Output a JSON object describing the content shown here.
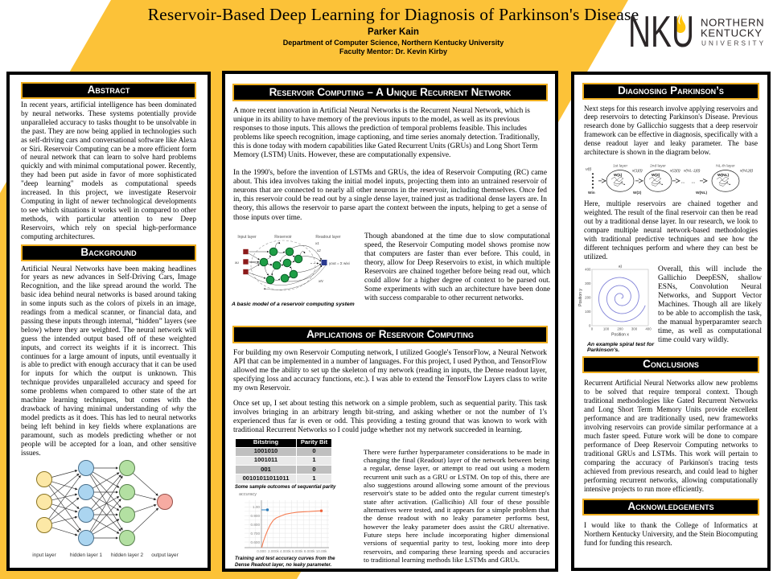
{
  "banner": {
    "title": "Reservoir-Based Deep Learning for Diagnosis of Parkinson's Disease",
    "author": "Parker Kain",
    "department": "Department of Computer Science, Northern Kentucky University",
    "mentor": "Faculty Mentor: Dr. Kevin Kirby"
  },
  "logo": {
    "acronym": "NKU",
    "line1": "NORTHERN",
    "line2": "KENTUCKY",
    "line3": "UNIVERSITY"
  },
  "colors": {
    "gold": "#FCC238",
    "black": "#000000",
    "header_border": "#EFAE1E",
    "nn_input": "#FCE8A6",
    "nn_hidden1": "#ABD5F0",
    "nn_hidden2": "#B3E0A2",
    "nn_output": "#F6ABA2",
    "reservoir_node": "#1e9e46",
    "input_square": "#8c1a1a",
    "readout_square": "#2b3a8f",
    "accuracy_orange": "#f57c52",
    "accuracy_blue": "#3b8ccc",
    "spiral_line": "#8183d8"
  },
  "sections": {
    "abstract": {
      "title": "Abstract",
      "body": "In recent years, artificial intelligence has been dominated by neural networks. These systems potentially provide unparalleled accuracy to tasks thought to be unsolvable in the past. They are now being applied in technologies such as self-driving cars and conversational software like Alexa or Siri. Reservoir Computing can be a more efficient form of neural network that can learn to solve hard problems quickly and with minimal computational power. Recently, they had been put aside in favor of more sophisticated \"deep learning\" models as computational speeds increased. In this project, we investigate Reservoir Computing in light of newer technological developments to see which situations it works well in compared to other methods, with particular attention to new Deep Reservoirs, which rely on special high-performance computing architectures."
    },
    "background": {
      "title": "Background",
      "body_pre": "Artificial Neural Networks have been making headlines for years as new advances in Self-Driving Cars, Image Recognition, and the like spread around the world. The basic idea behind neural networks is based around taking in some inputs such as the colors of pixels in an image, readings from a medical scanner, or financial data, and passing these inputs through internal, “hidden” layers (see below) where they are weighted. The neural network will guess the intended output based off of these weighted inputs, and correct its weights if it is incorrect. This continues for a large amount of inputs, until eventually it is able to predict with enough accuracy that it can be used for inputs for which the output is unknown. This technique provides unparalleled accuracy and speed for some problems when compared to other state of the art machine learning techniques, but comes with the drawback of having minimal understanding of ",
      "body_italic": "why",
      "body_post": " the model predicts as it does. This has led to neural networks being left behind in key fields where explanations are paramount, such as models predicting whether or not people will be accepted for a loan, and other sensitive issues."
    },
    "reservoir": {
      "title": "Reservoir Computing – A Unique Recurrent Network",
      "p1": "A more recent innovation in Artificial Neural Networks is the Recurrent Neural Network, which is unique in its ability to have memory of the previous inputs to the model, as well as its previous responses to those inputs. This allows the prediction of temporal problems feasible. This includes problems like speech recognition, image captioning, and time series anomaly detection. Traditionally, this is done today with modern capabilities like Gated Recurrent Units (GRUs) and Long Short Term Memory (LSTM) Units. However, these are computationally expensive.",
      "p2": "In the 1990's, before the invention of LSTMs and GRUs, the idea of Reservoir Computing (RC) came about. This idea involves taking the initial model inputs, projecting them into an untrained reservoir of neurons that are connected to nearly all other neurons in the reservoir, including themselves. Once fed in, this reservoir could be read out by a single dense layer, trained just as traditional dense layers are. In theory, this allows the reservoir to parse apart the context between the inputs, helping to get a sense of those inputs over time.",
      "p3": "Though abandoned at the time due to slow computational speed, the Reservoir Computing model shows promise now that computers are faster than ever before. This could, in theory, allow for Deep Reservoirs to exist, in which multiple Reservoirs are chained together before being read out, which could allow for a higher degree of context to be parsed out. Some experiments with such an architecture have been done with success comparable to other recurrent networks.",
      "fig_caption": "A basic model of a reservoir computing system",
      "fig_labels": {
        "input": "Input layer",
        "reservoir": "Reservoir",
        "readout": "Readout layer",
        "x1": "x1",
        "x2": "x2",
        "xn": "xN",
        "xu": "xu",
        "formula": "yout = Σ wixi"
      }
    },
    "applications": {
      "title": "Applications of Reservoir Computing",
      "p1": "For building my own Reservoir Computing network, I utilized Google's TensorFlow, a Neural Network API that can be implemented in a number of languages. For this project, I used Python, and TensorFlow allowed me the ability to set up the skeleton of my network (reading in inputs, the Dense readout layer, specifying loss and accuracy functions, etc.). I was able to extend the TensorFlow Layers class to write my own Reservoir.",
      "p2": "Once set up, I set about testing this network on a simple problem, such as sequential parity. This task involves bringing in an arbitrary length bit-string, and asking whether or not the number of 1's experienced thus far is even or odd. This providing a testing ground that was known to work with traditional Recurrent Networks so I could judge whether not my network succeeded in learning.",
      "p3": "There were further hyperparameter considerations to be made in changing the final (Readout) layer of the network between being a regular, dense layer, or attempt to read out using a modern recurrent unit such as a GRU or LSTM. On top of this, there are also suggestions around allowing  some amount of the previous reservoir's state to be added onto the regular current timestep's state after activation. (Gallicihio) All four of these possible alternatives were tested, and it appears for a simple problem that the dense readout with no leaky parameter performs best, however the leaky parameter does assist the GRU alternative. Future steps here include incorporating higher dimensional versions of sequential parity to test, looking more into deep reservoirs, and comparing these learning speeds and accuracies to traditional learning methods like LSTMs and GRUs.",
      "table": {
        "headers": [
          "Bitstring",
          "Parity Bit"
        ],
        "rows": [
          [
            "1001010",
            "0"
          ],
          [
            "1001011",
            "1"
          ],
          [
            "001",
            "0"
          ],
          [
            "00101011011011",
            "1"
          ]
        ],
        "caption": "Some sample outcomes of sequential parity"
      }
    },
    "diagnosing": {
      "title": "Diagnosing Parkinson’s",
      "p1": "Next steps for this research involve applying reservoirs and deep reservoirs to detecting Parkinson's Disease. Previous research done by Gallicchio suggests that a deep reservoir framework can be effective in diagnosis, specifically with a dense readout layer and leaky parameter. The base architecture is shown in the diagram below.",
      "p2": "Here, multiple reservoirs are chained together and weighted. The result of the final reservoir can then be read out by a traditional dense layer. In our research, we look to compare multiple neural network-based methodologies with traditional predictive techniques and see how the different techniques perform and where they can best be utilized.",
      "p3": "Overall, this will include the Gallichio DeepESN, shallow ESNs, Convolution Neural Networks, and Support Vector Machines. Though all are likely to be able to accomplish the task, the manual hyperparamter search time, as well as computational time could vary wildly.",
      "fig_labels": {
        "u": "u(t)",
        "win": "Win",
        "layer1": "1st layer",
        "layer2": "2nd layer",
        "layerN": "NL-th layer",
        "x1": "x(1)(t)",
        "x2": "x(2)(t)",
        "xn1": "x(NL-1)(t)",
        "xn": "x(NL)(t)",
        "w2": "W(2)",
        "wn": "W(NL)",
        "what1": "W(1)",
        "what2": "W(2)",
        "whatn": "W(NL)"
      }
    },
    "conclusions": {
      "title": "Conclusions",
      "body": "Recurrent Artificial Neural Networks allow new problems to be solved that require temporal context. Though traditional methodologies like Gated Recurrent Networks and Long Short Term Memory Units provide excellent performance and are traditionally used, new frameworks involving reservoirs can provide similar performance at a much faster speed. Future work will be done to compare performance of Deep Reservoir Computing networks to traditional GRUs and LSTMs. This work will pertain to comparing the accuracy of Parkinson's tracing tests achieved from previous research, and could lead to higher performing recurrent networks, allowing computationally intensive projects to run more efficiently."
    },
    "acknowledgements": {
      "title": "Acknowledgements",
      "body": "I would like to thank the College of Informatics at Northern Kentucky University, and the Stein Biocomputing fund for funding this research."
    }
  },
  "nn_diagram": {
    "labels": [
      "input layer",
      "hidden layer 1",
      "hidden layer 2",
      "output layer"
    ]
  },
  "chart_data": [
    {
      "type": "line",
      "title": "accuracy",
      "caption": "Training and test accuracy curves from the Dense Readout layer, no leaky parameter.",
      "xlabel": "steps",
      "ylabel": "accuracy",
      "xlim_k": [
        0,
        11.3
      ],
      "ylim": [
        0.536,
        1.06
      ],
      "xticklabels": [
        "0.000",
        "2.000k",
        "4.000k",
        "6.000k",
        "8.000k",
        "10.00k"
      ],
      "yticklabels": [
        "1.00",
        "0.900",
        "0.800",
        "0.700",
        "0.600"
      ],
      "grid": true,
      "series": [
        {
          "id": "orange",
          "name": "test accuracy",
          "color": "#f57c52",
          "x": [
            0.05,
            0.3,
            0.6,
            1,
            1.5,
            2,
            2.5,
            3,
            4,
            5,
            6,
            7,
            8,
            9,
            10
          ],
          "y": [
            0.536,
            0.6,
            0.66,
            0.73,
            0.8,
            0.85,
            0.875,
            0.89,
            0.917,
            0.93,
            0.94,
            0.945,
            0.948,
            0.952,
            0.956
          ]
        },
        {
          "id": "blue",
          "name": "training accuracy",
          "color": "#3b8ccc",
          "x": [
            0,
            1
          ],
          "y": [
            0.967,
            0.967
          ]
        }
      ]
    },
    {
      "type": "line",
      "title": "a)",
      "caption": "An example spiral test for Parkinson's.",
      "xlabel": "Position x",
      "ylabel": "Position y",
      "xlim": [
        0,
        400
      ],
      "ylim": [
        0,
        400
      ],
      "xticklabels": [
        "0",
        "100",
        "200",
        "300",
        "400"
      ],
      "yticklabels": [
        "0",
        "100",
        "200",
        "300",
        "400"
      ],
      "spiral": {
        "center": [
          205,
          200
        ],
        "turns": 3.1,
        "r0": 5,
        "r1": 182,
        "end_angle_deg": -18
      }
    }
  ]
}
